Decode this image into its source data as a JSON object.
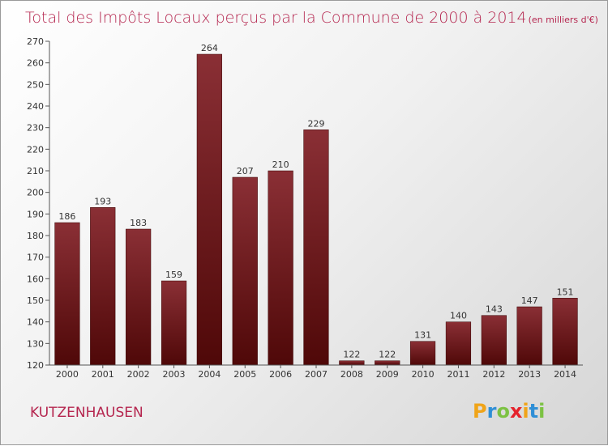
{
  "chart_data": {
    "type": "bar",
    "title": "Total des Impôts Locaux perçus par la Commune de 2000 à 2014",
    "title_unit": "(en milliers d'€)",
    "categories": [
      "2000",
      "2001",
      "2002",
      "2003",
      "2004",
      "2005",
      "2006",
      "2007",
      "2008",
      "2009",
      "2010",
      "2011",
      "2012",
      "2013",
      "2014"
    ],
    "values": [
      186,
      193,
      183,
      159,
      264,
      207,
      210,
      229,
      122,
      122,
      131,
      140,
      143,
      147,
      151
    ],
    "ylim": [
      120,
      270
    ],
    "yticks": [
      120,
      130,
      140,
      150,
      160,
      170,
      180,
      190,
      200,
      210,
      220,
      230,
      240,
      250,
      260,
      270
    ],
    "xlabel": "",
    "ylabel": "",
    "grid": false,
    "legend": "none"
  },
  "commune_name": "KUTZENHAUSEN",
  "brand": {
    "letters": [
      "P",
      "r",
      "o",
      "x",
      "i",
      "t",
      "i"
    ],
    "colors": [
      "#f0a418",
      "#2f8fd6",
      "#7cc243",
      "#e5222c",
      "#f0a418",
      "#2f8fd6",
      "#7cc243"
    ]
  },
  "colors": {
    "bar_dark": "#4f0808",
    "bar_light": "#8a2f35",
    "title": "#b5264f",
    "axis": "#555555"
  }
}
